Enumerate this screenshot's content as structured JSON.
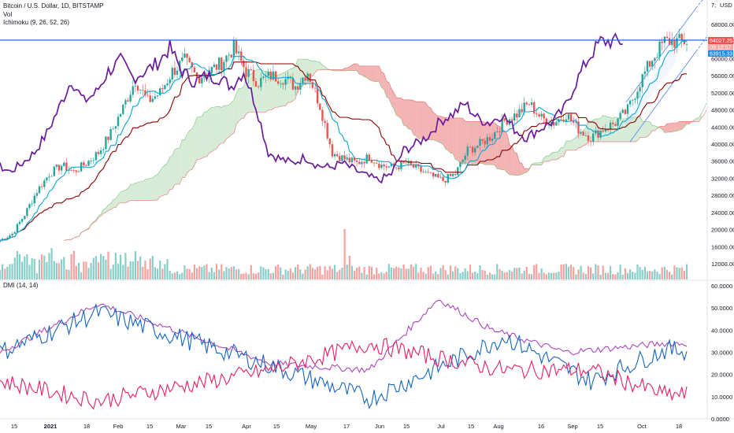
{
  "header": {
    "title": "Bitcoin / U.S. Dollar, 1D, BITSTAMP",
    "vol_label": "Vol",
    "ichimoku_label": "Ichimoku (9, 26, 52, 26)",
    "dmi_label": "DMI (14, 14)",
    "currency": "USD"
  },
  "colors": {
    "candle_up": "#26a69a",
    "candle_down": "#ef5350",
    "conversion": "#0aa5d6",
    "base": "#8b0000",
    "lagging": "#6a1b9a",
    "cloud_bull": "#c8e6c9",
    "cloud_bear": "#ef9a9a",
    "hline": "#1e66f5",
    "channel": "#5b8def",
    "dmi_plus": "#1565c0",
    "dmi_minus": "#e91e63",
    "adx": "#ab47bc"
  },
  "badges": {
    "price_top": "64027.25",
    "price_time": "09:12:57",
    "price_low": "63915.33"
  },
  "chart_data": [
    {
      "type": "line",
      "title": "Bitcoin / U.S. Dollar, 1D, BITSTAMP",
      "ylabel": "USD",
      "y_ticks": [
        "68000.00",
        "64000.00",
        "60000.00",
        "56000.00",
        "52000.00",
        "48000.00",
        "44000.00",
        "40000.00",
        "36000.00",
        "32000.00",
        "28000.00",
        "24000.00",
        "20000.00",
        "16000.00",
        "12000.00"
      ],
      "ylim": [
        8000,
        72000
      ],
      "x_ticks": [
        "15",
        "2021",
        "18",
        "Feb",
        "15",
        "Mar",
        "15",
        "Apr",
        "15",
        "May",
        "17",
        "Jun",
        "15",
        "Jul",
        "15",
        "Aug",
        "16",
        "Sep",
        "15",
        "Oct",
        "18"
      ],
      "close_path": [
        [
          0,
          17500
        ],
        [
          5,
          19000
        ],
        [
          10,
          23500
        ],
        [
          15,
          29000
        ],
        [
          20,
          33000
        ],
        [
          25,
          35000
        ],
        [
          30,
          33500
        ],
        [
          35,
          35500
        ],
        [
          40,
          38000
        ],
        [
          45,
          42500
        ],
        [
          50,
          48500
        ],
        [
          55,
          55000
        ],
        [
          60,
          50000
        ],
        [
          65,
          52000
        ],
        [
          70,
          57000
        ],
        [
          75,
          59500
        ],
        [
          80,
          55500
        ],
        [
          85,
          57000
        ],
        [
          90,
          59000
        ],
        [
          95,
          62500
        ],
        [
          100,
          57000
        ],
        [
          105,
          54500
        ],
        [
          110,
          56000
        ],
        [
          115,
          55500
        ],
        [
          120,
          53500
        ],
        [
          125,
          57000
        ],
        [
          130,
          49000
        ],
        [
          135,
          38000
        ],
        [
          140,
          36500
        ],
        [
          145,
          35500
        ],
        [
          150,
          37000
        ],
        [
          155,
          35000
        ],
        [
          160,
          34500
        ],
        [
          165,
          35500
        ],
        [
          170,
          34000
        ],
        [
          175,
          32500
        ],
        [
          180,
          31500
        ],
        [
          185,
          33000
        ],
        [
          190,
          38500
        ],
        [
          195,
          40000
        ],
        [
          200,
          42000
        ],
        [
          205,
          45500
        ],
        [
          210,
          47000
        ],
        [
          215,
          49500
        ],
        [
          220,
          46000
        ],
        [
          225,
          45000
        ],
        [
          230,
          47000
        ],
        [
          235,
          43500
        ],
        [
          240,
          41500
        ],
        [
          245,
          43500
        ],
        [
          250,
          45000
        ],
        [
          255,
          48000
        ],
        [
          260,
          54500
        ],
        [
          265,
          60000
        ],
        [
          270,
          64000
        ]
      ],
      "adx_sample": [
        [
          0,
          30
        ],
        [
          40,
          52
        ],
        [
          110,
          25
        ],
        [
          150,
          22
        ],
        [
          178,
          54
        ],
        [
          200,
          40
        ],
        [
          230,
          30
        ],
        [
          270,
          34
        ]
      ],
      "plus_di_sample": [
        [
          0,
          30
        ],
        [
          40,
          48
        ],
        [
          110,
          24
        ],
        [
          150,
          9
        ],
        [
          180,
          24
        ],
        [
          205,
          37
        ],
        [
          240,
          17
        ],
        [
          270,
          31
        ]
      ],
      "minus_di_sample": [
        [
          0,
          17
        ],
        [
          40,
          8
        ],
        [
          110,
          22
        ],
        [
          150,
          34
        ],
        [
          180,
          27
        ],
        [
          205,
          22
        ],
        [
          240,
          22
        ],
        [
          270,
          11
        ]
      ],
      "dmi_y_ticks": [
        "60.0000",
        "50.0000",
        "40.0000",
        "30.0000",
        "20.0000",
        "10.0000",
        "0.0000"
      ],
      "dmi_ylim": [
        0,
        60
      ],
      "horizontal_line": 64900,
      "grid": false,
      "legend": "top-left"
    }
  ]
}
